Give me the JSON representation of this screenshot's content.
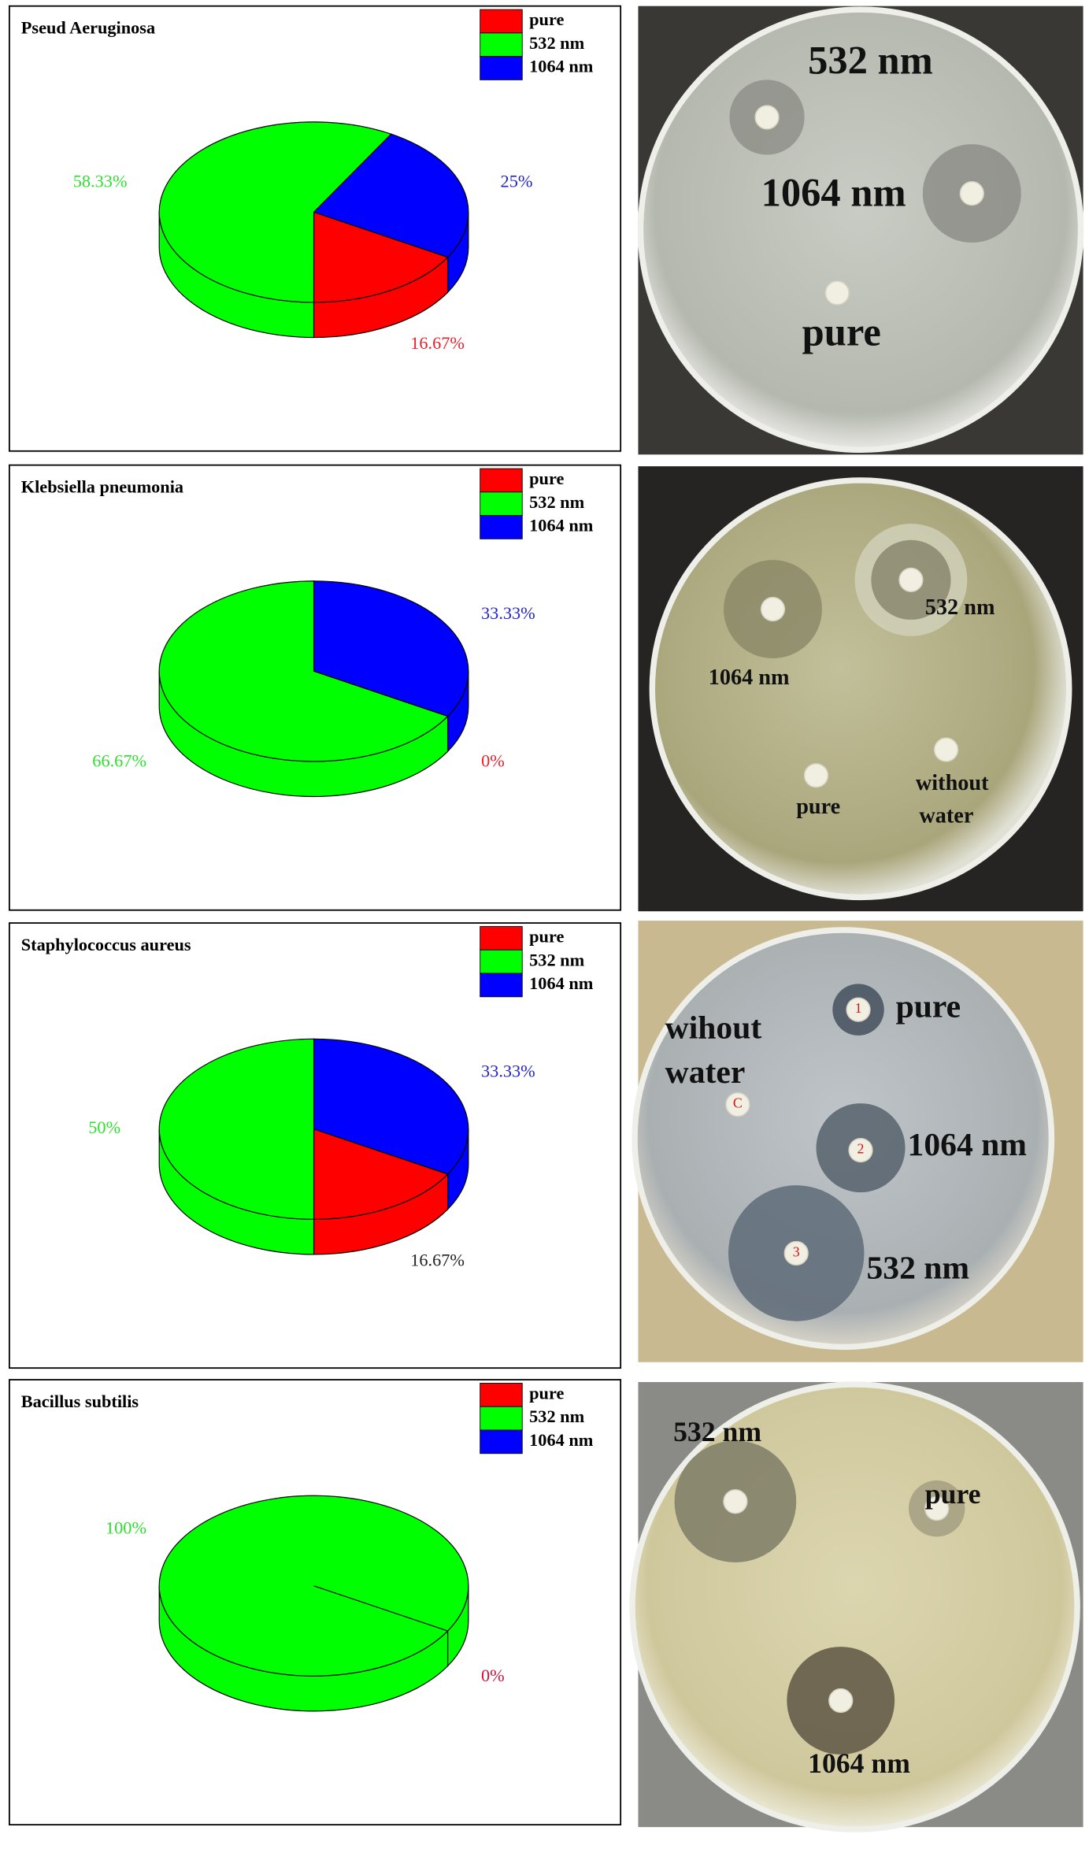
{
  "chart_data": [
    {
      "type": "pie",
      "title": "Pseud Aeruginosa",
      "categories": [
        "pure",
        "532 nm",
        "1064 nm"
      ],
      "colors": [
        "#ff0000",
        "#00ff00",
        "#0000ff"
      ],
      "values": [
        16.67,
        58.33,
        25
      ],
      "value_labels": [
        "16.67%",
        "58.33%",
        "25%"
      ],
      "label_colors": [
        "#e8202a",
        "#2ee02e",
        "#2323c8"
      ]
    },
    {
      "type": "pie",
      "title": "Klebsiella pneumonia",
      "categories": [
        "pure",
        "532 nm",
        "1064 nm"
      ],
      "colors": [
        "#ff0000",
        "#00ff00",
        "#0000ff"
      ],
      "values": [
        0,
        66.67,
        33.33
      ],
      "value_labels": [
        "0%",
        "66.67%",
        "33.33%"
      ],
      "label_colors": [
        "#e8202a",
        "#2ee02e",
        "#2323c8"
      ]
    },
    {
      "type": "pie",
      "title": "Staphylococcus aureus",
      "categories": [
        "pure",
        "532 nm",
        "1064 nm"
      ],
      "colors": [
        "#ff0000",
        "#00ff00",
        "#0000ff"
      ],
      "values": [
        16.67,
        50,
        33.33
      ],
      "value_labels": [
        "16.67%",
        "50%",
        "33.33%"
      ],
      "label_colors": [
        "#222222",
        "#2ee02e",
        "#2323c8"
      ]
    },
    {
      "type": "pie",
      "title": "Bacillus subtilis",
      "categories": [
        "pure",
        "532 nm",
        "1064 nm"
      ],
      "colors": [
        "#ff0000",
        "#00ff00",
        "#0000ff"
      ],
      "values": [
        0,
        100,
        0
      ],
      "value_labels": [
        "0%",
        "100%",
        null
      ],
      "label_colors": [
        "#d0103a",
        "#2ee02e",
        null
      ]
    }
  ],
  "photos": [
    {
      "labels": [
        "532 nm",
        "1064 nm",
        "pure"
      ]
    },
    {
      "labels": [
        "1064 nm",
        "532 nm",
        "pure",
        "without",
        "water"
      ]
    },
    {
      "labels": [
        "pure",
        "wihout",
        "water",
        "1064 nm",
        "532 nm",
        "1",
        "2",
        "3",
        "C"
      ]
    },
    {
      "labels": [
        "532 nm",
        "pure",
        "1064 nm"
      ]
    }
  ]
}
